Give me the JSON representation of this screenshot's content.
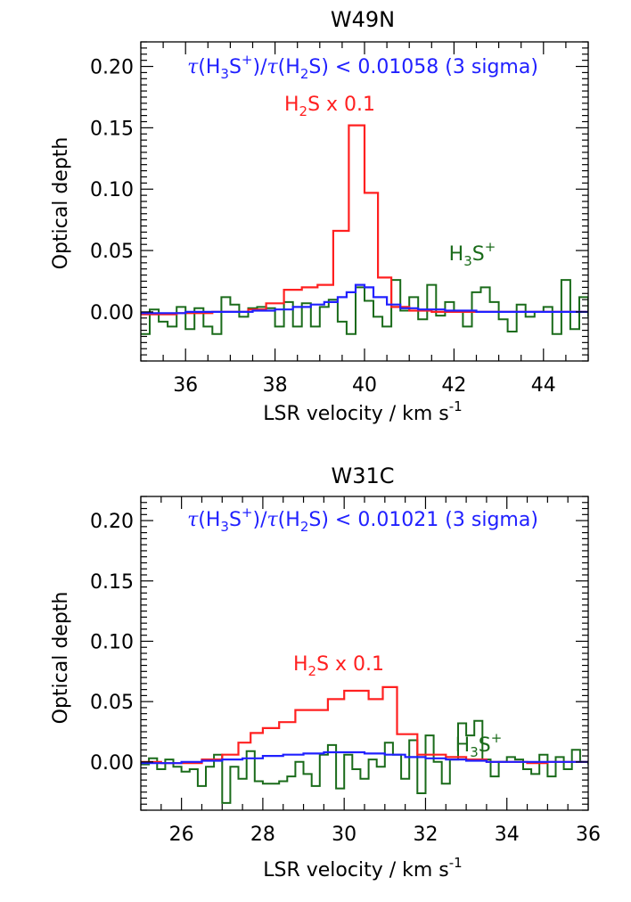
{
  "figure": {
    "xlabel": "LSR velocity / km s",
    "xlabel_sup": "-1",
    "ylabel": "Optical depth"
  },
  "colors": {
    "h2s": "#ff2020",
    "h3s_model": "#2020ff",
    "h3s_data": "#1a6b1a",
    "ratio": "#2020ff"
  },
  "chart_data": [
    {
      "type": "line",
      "title": "W49N",
      "xlabel": "LSR velocity / km s-1",
      "ylabel": "Optical depth",
      "xlim": [
        35,
        45
      ],
      "ylim": [
        -0.04,
        0.22
      ],
      "xticks": [
        36,
        38,
        40,
        42,
        44
      ],
      "yticks": [
        0.0,
        0.05,
        0.1,
        0.15,
        0.2
      ],
      "ytick_labels": [
        "0.00",
        "0.05",
        "0.10",
        "0.15",
        "0.20"
      ],
      "annotations": {
        "ratio": {
          "parts": [
            "τ",
            "(H",
            "3",
            "S",
            "+",
            ")/",
            "τ",
            "(H",
            "2",
            "S) < 0.01058 (3 sigma)"
          ]
        },
        "h2s_label": {
          "parts": [
            "H",
            "2",
            "S x 0.1"
          ]
        },
        "h3s_label": {
          "parts": [
            "H",
            "3",
            "S",
            "+"
          ]
        }
      },
      "series": [
        {
          "name": "H2S x 0.1",
          "style": "step",
          "color": "#ff2020",
          "x": [
            35.0,
            35.4,
            35.8,
            36.2,
            36.6,
            37.0,
            37.4,
            37.8,
            38.2,
            38.6,
            38.95,
            39.3,
            39.65,
            40.0,
            40.3,
            40.6,
            41.0,
            41.5,
            42.0,
            42.5,
            43.0,
            43.5,
            44.0,
            44.5,
            45.0
          ],
          "y": [
            -0.002,
            -0.002,
            -0.001,
            -0.001,
            0.0,
            0.0,
            0.002,
            0.007,
            0.018,
            0.02,
            0.022,
            0.066,
            0.152,
            0.097,
            0.028,
            0.004,
            0.001,
            0.0,
            0.0,
            0.0,
            0.0,
            0.0,
            0.0,
            0.0,
            0.0
          ]
        },
        {
          "name": "H3S+ model",
          "style": "step",
          "color": "#2020ff",
          "x": [
            35.0,
            35.5,
            36.0,
            36.5,
            37.0,
            37.5,
            38.0,
            38.4,
            38.8,
            39.1,
            39.4,
            39.6,
            39.8,
            40.0,
            40.2,
            40.5,
            40.8,
            41.2,
            41.8,
            42.5,
            43.5,
            44.5,
            45.0
          ],
          "y": [
            -0.001,
            -0.001,
            0.0,
            0.0,
            0.0,
            0.001,
            0.002,
            0.004,
            0.006,
            0.008,
            0.012,
            0.016,
            0.022,
            0.02,
            0.012,
            0.006,
            0.003,
            0.002,
            0.001,
            0.0,
            0.0,
            0.0,
            0.0
          ]
        },
        {
          "name": "H3S+",
          "style": "step",
          "color": "#1a6b1a",
          "x": [
            35.0,
            35.2,
            35.4,
            35.6,
            35.8,
            36.0,
            36.2,
            36.4,
            36.6,
            36.8,
            37.0,
            37.2,
            37.4,
            37.6,
            37.8,
            38.0,
            38.2,
            38.4,
            38.6,
            38.8,
            39.0,
            39.2,
            39.4,
            39.6,
            39.8,
            40.0,
            40.2,
            40.4,
            40.6,
            40.8,
            41.0,
            41.2,
            41.4,
            41.6,
            41.8,
            42.0,
            42.2,
            42.4,
            42.6,
            42.8,
            43.0,
            43.2,
            43.4,
            43.6,
            43.8,
            44.0,
            44.2,
            44.4,
            44.6,
            44.8,
            45.0
          ],
          "y": [
            -0.018,
            0.002,
            -0.008,
            -0.012,
            0.004,
            -0.014,
            0.003,
            -0.012,
            -0.018,
            0.012,
            0.006,
            -0.004,
            0.003,
            0.004,
            0.003,
            -0.012,
            0.008,
            -0.012,
            0.007,
            -0.012,
            0.004,
            0.01,
            -0.008,
            -0.018,
            0.02,
            0.009,
            -0.004,
            -0.012,
            0.026,
            0.001,
            0.012,
            -0.006,
            0.022,
            -0.003,
            0.008,
            0.0,
            -0.012,
            0.016,
            0.02,
            0.008,
            -0.006,
            -0.016,
            0.006,
            -0.004,
            0.0,
            0.004,
            -0.018,
            0.026,
            -0.014,
            0.012,
            -0.004
          ]
        }
      ]
    },
    {
      "type": "line",
      "title": "W31C",
      "xlabel": "LSR velocity / km s-1",
      "ylabel": "Optical depth",
      "xlim": [
        25,
        36
      ],
      "ylim": [
        -0.04,
        0.22
      ],
      "xticks": [
        26,
        28,
        30,
        32,
        34,
        36
      ],
      "yticks": [
        0.0,
        0.05,
        0.1,
        0.15,
        0.2
      ],
      "ytick_labels": [
        "0.00",
        "0.05",
        "0.10",
        "0.15",
        "0.20"
      ],
      "annotations": {
        "ratio": {
          "parts": [
            "τ",
            "(H",
            "3",
            "S",
            "+",
            ")/",
            "τ",
            "(H",
            "2",
            "S) < 0.01021 (3 sigma)"
          ]
        },
        "h2s_label": {
          "parts": [
            "H",
            "2",
            "S x 0.1"
          ]
        },
        "h3s_label": {
          "parts": [
            "H",
            "3",
            "S",
            "+"
          ]
        }
      },
      "series": [
        {
          "name": "H2S x 0.1",
          "style": "step",
          "color": "#ff2020",
          "x": [
            25.0,
            25.5,
            26.0,
            26.5,
            27.0,
            27.4,
            27.7,
            28.0,
            28.4,
            28.8,
            29.6,
            30.0,
            30.6,
            30.95,
            31.3,
            31.8,
            32.5,
            33.0,
            33.5,
            34.0,
            34.5,
            35.0,
            35.5,
            36.0
          ],
          "y": [
            0.0,
            -0.001,
            -0.001,
            0.002,
            0.006,
            0.016,
            0.024,
            0.028,
            0.033,
            0.043,
            0.052,
            0.059,
            0.052,
            0.062,
            0.023,
            0.006,
            0.004,
            0.002,
            0.0,
            0.0,
            -0.001,
            0.0,
            0.0,
            0.0
          ]
        },
        {
          "name": "H3S+ model",
          "style": "step",
          "color": "#2020ff",
          "x": [
            25.0,
            25.5,
            26.0,
            26.5,
            27.0,
            27.5,
            28.0,
            28.5,
            29.0,
            29.5,
            30.0,
            30.5,
            31.0,
            31.5,
            32.0,
            32.5,
            33.0,
            33.5,
            34.0,
            35.0,
            36.0
          ],
          "y": [
            -0.001,
            -0.001,
            0.0,
            0.001,
            0.002,
            0.003,
            0.005,
            0.006,
            0.007,
            0.008,
            0.008,
            0.007,
            0.006,
            0.004,
            0.003,
            0.002,
            0.001,
            0.0,
            0.0,
            0.0,
            0.0
          ]
        },
        {
          "name": "H3S+",
          "style": "step",
          "color": "#1a6b1a",
          "x": [
            25.0,
            25.2,
            25.4,
            25.6,
            25.8,
            26.0,
            26.2,
            26.4,
            26.6,
            26.8,
            27.0,
            27.2,
            27.4,
            27.6,
            27.8,
            28.0,
            28.2,
            28.4,
            28.6,
            28.8,
            29.0,
            29.2,
            29.4,
            29.6,
            29.8,
            30.0,
            30.2,
            30.4,
            30.6,
            30.8,
            31.0,
            31.2,
            31.4,
            31.6,
            31.8,
            32.0,
            32.2,
            32.4,
            32.6,
            32.8,
            33.0,
            33.2,
            33.4,
            33.6,
            33.8,
            34.0,
            34.2,
            34.4,
            34.6,
            34.8,
            35.0,
            35.2,
            35.4,
            35.6,
            35.8,
            36.0
          ],
          "y": [
            -0.002,
            0.003,
            -0.006,
            0.002,
            -0.004,
            -0.008,
            -0.006,
            -0.02,
            -0.004,
            0.006,
            -0.034,
            -0.004,
            -0.014,
            0.009,
            -0.016,
            -0.018,
            -0.018,
            -0.016,
            -0.012,
            0.0,
            -0.01,
            -0.02,
            0.006,
            0.014,
            -0.022,
            0.006,
            -0.006,
            -0.014,
            0.002,
            -0.004,
            0.016,
            0.006,
            -0.014,
            0.018,
            -0.026,
            0.022,
            0.0,
            -0.018,
            0.002,
            0.032,
            0.022,
            0.034,
            0.002,
            -0.012,
            0.0,
            0.004,
            0.002,
            -0.006,
            -0.01,
            0.006,
            -0.012,
            0.004,
            -0.006,
            0.01,
            0.0,
            -0.002
          ]
        }
      ]
    }
  ]
}
